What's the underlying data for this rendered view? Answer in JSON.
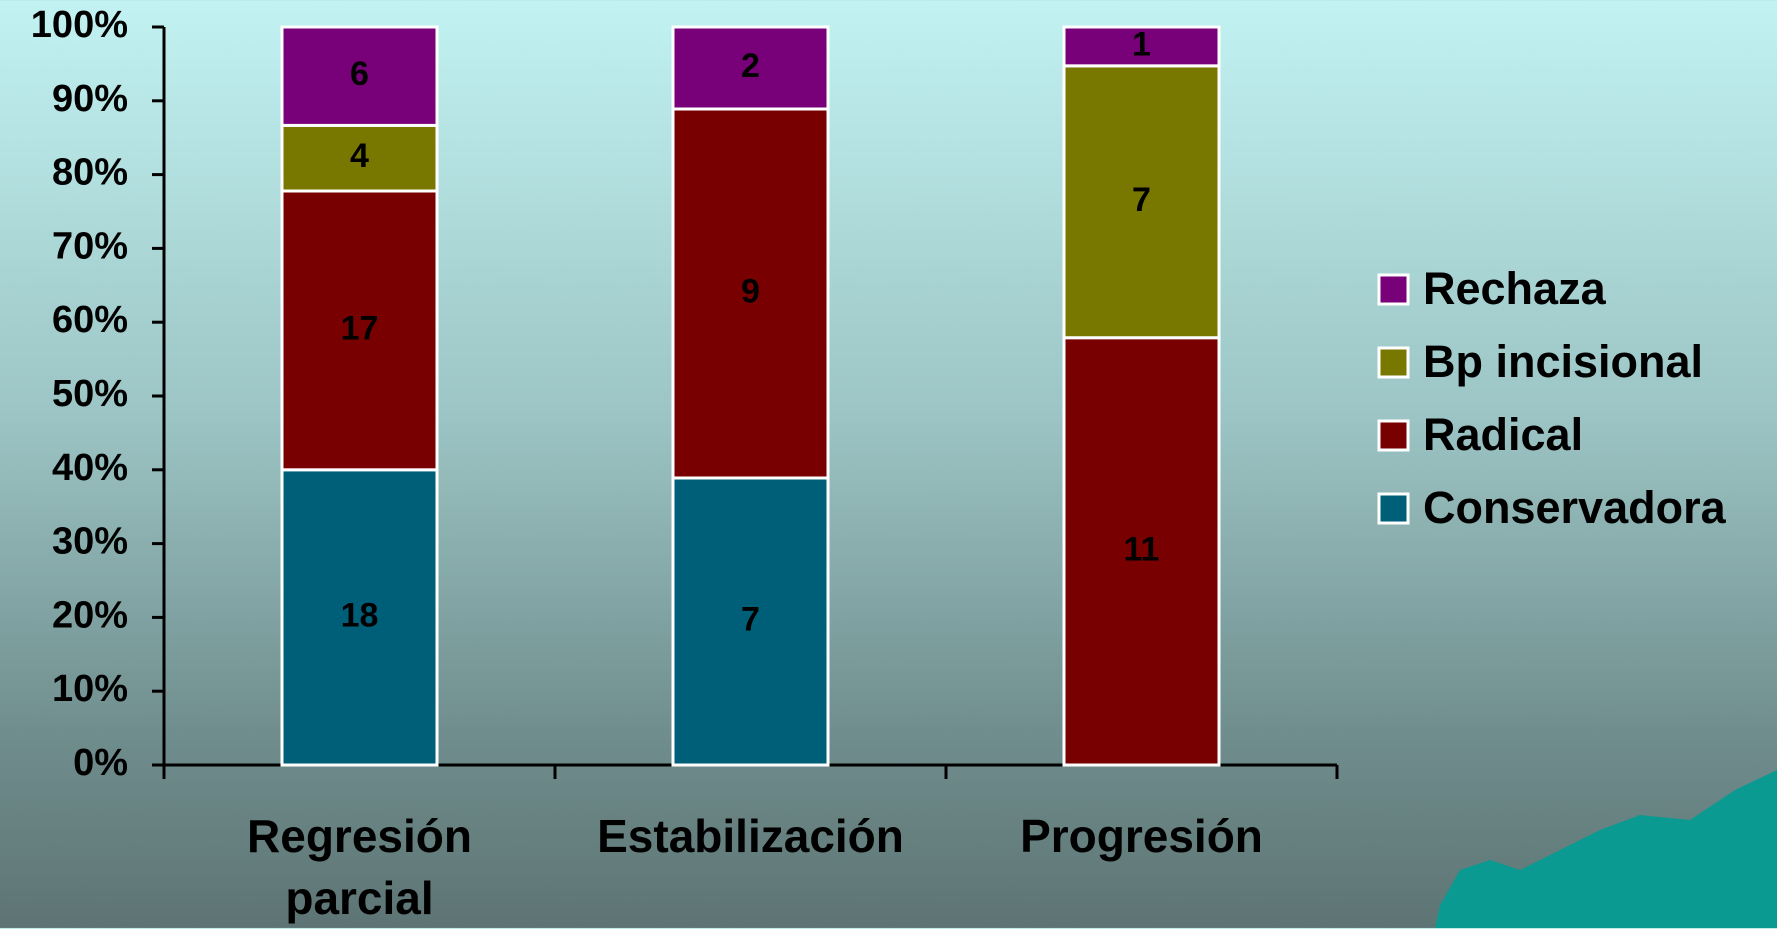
{
  "chart_data": {
    "type": "bar",
    "stacked": "percent",
    "categories": [
      "Regresión parcial",
      "Estabilización",
      "Progresión"
    ],
    "series": [
      {
        "name": "Conservadora",
        "color": "#005f78",
        "values": [
          18,
          7,
          null
        ]
      },
      {
        "name": "Radical",
        "color": "#780000",
        "values": [
          17,
          9,
          11
        ]
      },
      {
        "name": "Bp incisional",
        "color": "#787800",
        "values": [
          4,
          null,
          7
        ]
      },
      {
        "name": "Rechaza",
        "color": "#780078",
        "values": [
          6,
          2,
          1
        ]
      }
    ],
    "ylim": [
      0,
      100
    ],
    "yticks": [
      {
        "value": 0,
        "label": "0%"
      },
      {
        "value": 10,
        "label": "10%"
      },
      {
        "value": 20,
        "label": "20%"
      },
      {
        "value": 30,
        "label": "30%"
      },
      {
        "value": 40,
        "label": "40%"
      },
      {
        "value": 50,
        "label": "50%"
      },
      {
        "value": 60,
        "label": "60%"
      },
      {
        "value": 70,
        "label": "70%"
      },
      {
        "value": 80,
        "label": "80%"
      },
      {
        "value": 90,
        "label": "90%"
      },
      {
        "value": 100,
        "label": "100%"
      }
    ],
    "legend": "right"
  }
}
